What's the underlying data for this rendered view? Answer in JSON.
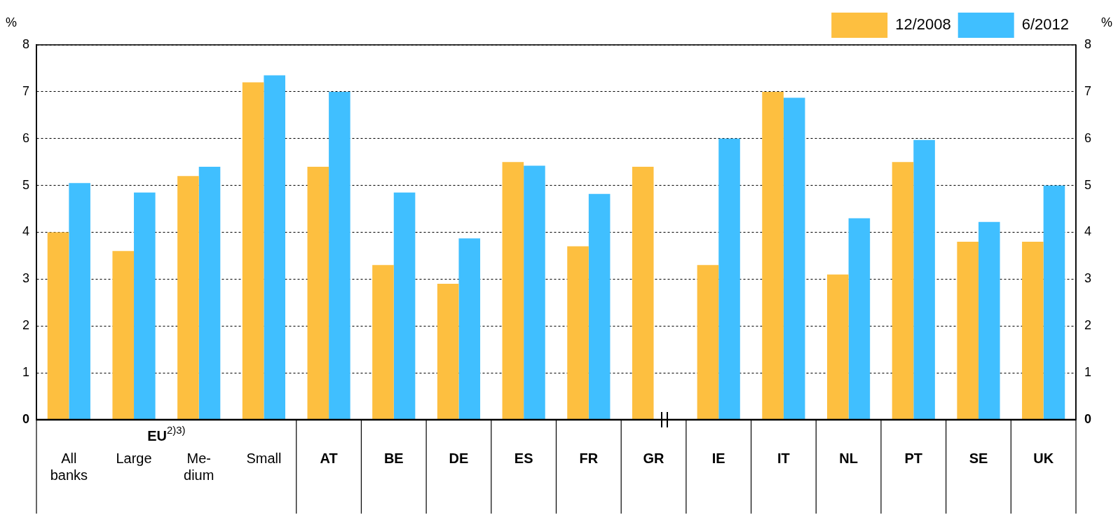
{
  "chart_data": {
    "type": "bar",
    "ylabel": "%",
    "y2label": "%",
    "categories": [
      "All banks",
      "Large",
      "Me-dium",
      "Small",
      "AT",
      "BE",
      "DE",
      "ES",
      "FR",
      "GR",
      "IE",
      "IT",
      "NL",
      "PT",
      "SE",
      "UK"
    ],
    "series": [
      {
        "name": "12/2008",
        "color": "#fdbf40",
        "values": [
          4.0,
          3.6,
          5.2,
          7.2,
          5.4,
          3.3,
          2.9,
          5.5,
          3.7,
          5.4,
          3.3,
          7.0,
          3.1,
          5.5,
          3.8,
          3.8
        ]
      },
      {
        "name": "6/2012",
        "color": "#40bfff",
        "values": [
          5.05,
          4.85,
          5.4,
          7.35,
          7.0,
          4.85,
          3.87,
          5.42,
          4.82,
          null,
          6.0,
          6.87,
          4.3,
          5.97,
          4.22,
          5.0
        ]
      }
    ],
    "ylim": [
      0,
      8
    ],
    "yticks": [
      0,
      1,
      2,
      3,
      4,
      5,
      6,
      7,
      8
    ],
    "y2lim": [
      0,
      8
    ],
    "y2ticks": [
      0,
      1,
      2,
      3,
      4,
      5,
      6,
      7,
      8
    ],
    "grid": "y",
    "legend": "top right",
    "annotations": [
      "EU$^{2)3)}$"
    ]
  }
}
